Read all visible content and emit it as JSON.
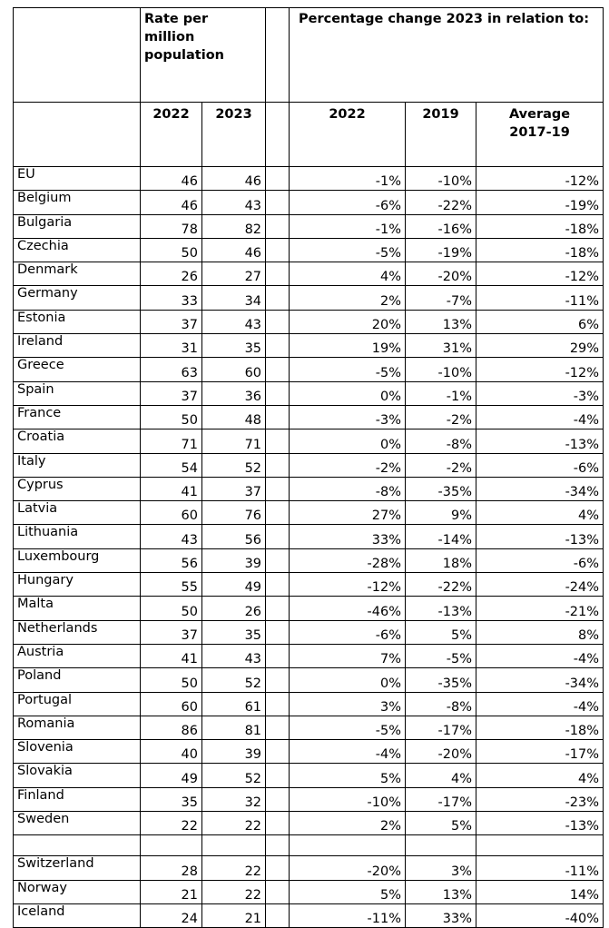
{
  "header": {
    "rate_group": "Rate per million population",
    "change_group": "Percentage change 2023 in relation to:",
    "columns": [
      "2022",
      "2023",
      "2022",
      "2019",
      "Average 2017-19"
    ]
  },
  "rows": [
    [
      "EU",
      46,
      46,
      "-1%",
      "-10%",
      "-12%"
    ],
    [
      "Belgium",
      46,
      43,
      "-6%",
      "-22%",
      "-19%"
    ],
    [
      "Bulgaria",
      78,
      82,
      "-1%",
      "-16%",
      "-18%"
    ],
    [
      "Czechia",
      50,
      46,
      "-5%",
      "-19%",
      "-18%"
    ],
    [
      "Denmark",
      26,
      27,
      "4%",
      "-20%",
      "-12%"
    ],
    [
      "Germany",
      33,
      34,
      "2%",
      "-7%",
      "-11%"
    ],
    [
      "Estonia",
      37,
      43,
      "20%",
      "13%",
      "6%"
    ],
    [
      "Ireland",
      31,
      35,
      "19%",
      "31%",
      "29%"
    ],
    [
      "Greece",
      63,
      60,
      "-5%",
      "-10%",
      "-12%"
    ],
    [
      "Spain",
      37,
      36,
      "0%",
      "-1%",
      "-3%"
    ],
    [
      "France",
      50,
      48,
      "-3%",
      "-2%",
      "-4%"
    ],
    [
      "Croatia",
      71,
      71,
      "0%",
      "-8%",
      "-13%"
    ],
    [
      "Italy",
      54,
      52,
      "-2%",
      "-2%",
      "-6%"
    ],
    [
      "Cyprus",
      41,
      37,
      "-8%",
      "-35%",
      "-34%"
    ],
    [
      "Latvia",
      60,
      76,
      "27%",
      "9%",
      "4%"
    ],
    [
      "Lithuania",
      43,
      56,
      "33%",
      "-14%",
      "-13%"
    ],
    [
      "Luxembourg",
      56,
      39,
      "-28%",
      "18%",
      "-6%"
    ],
    [
      "Hungary",
      55,
      49,
      "-12%",
      "-22%",
      "-24%"
    ],
    [
      "Malta",
      50,
      26,
      "-46%",
      "-13%",
      "-21%"
    ],
    [
      "Netherlands",
      37,
      35,
      "-6%",
      "5%",
      "8%"
    ],
    [
      "Austria",
      41,
      43,
      "7%",
      "-5%",
      "-4%"
    ],
    [
      "Poland",
      50,
      52,
      "0%",
      "-35%",
      "-34%"
    ],
    [
      "Portugal",
      60,
      61,
      "3%",
      "-8%",
      "-4%"
    ],
    [
      "Romania",
      86,
      81,
      "-5%",
      "-17%",
      "-18%"
    ],
    [
      "Slovenia",
      40,
      39,
      "-4%",
      "-20%",
      "-17%"
    ],
    [
      "Slovakia",
      49,
      52,
      "5%",
      "4%",
      "4%"
    ],
    [
      "Finland",
      35,
      32,
      "-10%",
      "-17%",
      "-23%"
    ],
    [
      "Sweden",
      22,
      22,
      "2%",
      "5%",
      "-13%"
    ]
  ],
  "extra_rows": [
    [
      "Switzerland",
      28,
      22,
      "-20%",
      "3%",
      "-11%"
    ],
    [
      "Norway",
      21,
      22,
      "5%",
      "13%",
      "14%"
    ],
    [
      "Iceland",
      24,
      21,
      "-11%",
      "33%",
      "-40%"
    ]
  ]
}
